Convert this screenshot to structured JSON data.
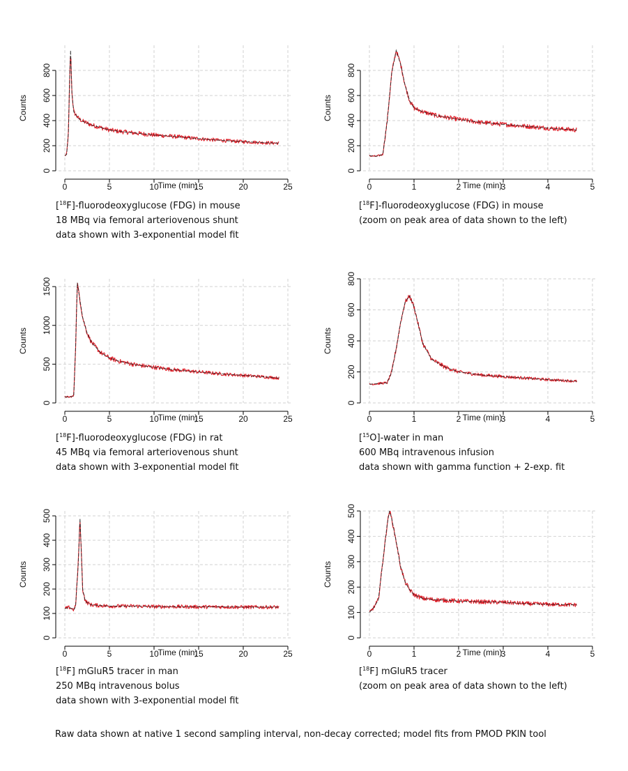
{
  "charts": [
    {
      "chart_data": {
        "type": "line",
        "xlabel": "Time (min)",
        "ylabel": "Counts",
        "xlim": [
          0,
          25
        ],
        "ylim": [
          0,
          1000
        ],
        "xticks": [
          0,
          5,
          10,
          15,
          20,
          25
        ],
        "yticks": [
          0,
          200,
          400,
          600,
          800
        ],
        "grid": true,
        "series": [
          {
            "role": "raw data",
            "color": "#e0202a",
            "x": [
              0,
              0.2,
              0.4,
              0.55,
              0.65,
              0.8,
              1.0,
              1.5,
              2,
              3,
              4,
              5,
              6,
              8,
              10,
              12,
              14,
              16,
              18,
              20,
              22,
              24
            ],
            "y": [
              120,
              130,
              300,
              750,
              960,
              620,
              470,
              420,
              395,
              365,
              345,
              325,
              315,
              300,
              285,
              275,
              262,
              250,
              240,
              232,
              225,
              220
            ]
          },
          {
            "role": "model fit",
            "color": "#222222",
            "x": [
              0,
              0.2,
              0.4,
              0.55,
              0.65,
              0.8,
              1.0,
              1.5,
              2,
              3,
              4,
              5,
              6,
              8,
              10,
              12,
              14,
              16,
              18,
              20,
              22,
              24
            ],
            "y": [
              120,
              130,
              300,
              750,
              960,
              620,
              470,
              420,
              395,
              365,
              345,
              325,
              315,
              300,
              285,
              275,
              262,
              250,
              240,
              232,
              225,
              220
            ]
          }
        ]
      },
      "caption": [
        "F]-fluorodeoxyglucose (FDG) in mouse",
        "18 MBq via femoral arteriovenous shunt",
        "data shown with 3-exponential model fit"
      ]
    },
    {
      "chart_data": {
        "type": "line",
        "xlabel": "Time (min)",
        "ylabel": "Counts",
        "xlim": [
          0,
          5
        ],
        "ylim": [
          0,
          1000
        ],
        "xticks": [
          0,
          1,
          2,
          3,
          4,
          5
        ],
        "yticks": [
          0,
          200,
          400,
          600,
          800
        ],
        "grid": true,
        "series": [
          {
            "role": "raw data",
            "color": "#e0202a",
            "x": [
              0,
              0.15,
              0.3,
              0.4,
              0.5,
              0.6,
              0.7,
              0.8,
              0.9,
              1.0,
              1.2,
              1.5,
              2.0,
              2.5,
              3.0,
              3.5,
              4.0,
              4.65
            ],
            "y": [
              120,
              115,
              130,
              400,
              780,
              960,
              850,
              680,
              560,
              500,
              470,
              440,
              410,
              385,
              370,
              355,
              340,
              325
            ]
          },
          {
            "role": "model fit",
            "color": "#222222",
            "x": [
              0,
              0.15,
              0.3,
              0.4,
              0.5,
              0.6,
              0.7,
              0.8,
              0.9,
              1.0,
              1.2,
              1.5,
              2.0,
              2.5,
              3.0,
              3.5,
              4.0,
              4.65
            ],
            "y": [
              120,
              115,
              130,
              400,
              780,
              960,
              850,
              680,
              560,
              500,
              470,
              440,
              410,
              385,
              370,
              355,
              340,
              325
            ]
          }
        ]
      },
      "caption": [
        "F]-fluorodeoxyglucose (FDG) in mouse",
        "(zoom on peak area of data shown to the left)"
      ]
    },
    {
      "chart_data": {
        "type": "line",
        "xlabel": "Time (min)",
        "ylabel": "Counts",
        "xlim": [
          0,
          25
        ],
        "ylim": [
          0,
          1600
        ],
        "xticks": [
          0,
          5,
          10,
          15,
          20,
          25
        ],
        "yticks": [
          0,
          500,
          1000,
          1500
        ],
        "grid": true,
        "series": [
          {
            "role": "raw data",
            "color": "#e0202a",
            "x": [
              0,
              0.5,
              1.0,
              1.2,
              1.4,
              1.6,
              2,
              2.5,
              3,
              4,
              5,
              6,
              8,
              10,
              12,
              14,
              16,
              18,
              20,
              22,
              24
            ],
            "y": [
              80,
              75,
              90,
              700,
              1550,
              1400,
              1100,
              900,
              780,
              650,
              580,
              540,
              490,
              460,
              430,
              410,
              390,
              370,
              355,
              340,
              320
            ]
          },
          {
            "role": "model fit",
            "color": "#222222",
            "x": [
              0,
              0.5,
              1.0,
              1.2,
              1.4,
              1.6,
              2,
              2.5,
              3,
              4,
              5,
              6,
              8,
              10,
              12,
              14,
              16,
              18,
              20,
              22,
              24
            ],
            "y": [
              80,
              75,
              90,
              700,
              1550,
              1400,
              1100,
              900,
              780,
              650,
              580,
              540,
              490,
              460,
              430,
              410,
              390,
              370,
              355,
              340,
              320
            ]
          }
        ]
      },
      "caption": [
        "F]-fluorodeoxyglucose (FDG) in rat",
        "45 MBq via femoral arteriovenous shunt",
        "data shown with 3-exponential model fit"
      ]
    },
    {
      "chart_data": {
        "type": "line",
        "xlabel": "Time (min)",
        "ylabel": "Counts",
        "xlim": [
          0,
          5
        ],
        "ylim": [
          0,
          800
        ],
        "xticks": [
          0,
          1,
          2,
          3,
          4,
          5
        ],
        "yticks": [
          0,
          200,
          400,
          600,
          800
        ],
        "grid": true,
        "series": [
          {
            "role": "raw data",
            "color": "#e0202a",
            "x": [
              0,
              0.2,
              0.4,
              0.5,
              0.6,
              0.7,
              0.8,
              0.9,
              1.0,
              1.1,
              1.2,
              1.4,
              1.7,
              2.0,
              2.5,
              3.0,
              3.5,
              4.0,
              4.65
            ],
            "y": [
              120,
              125,
              130,
              200,
              350,
              520,
              650,
              690,
              620,
              500,
              380,
              280,
              230,
              200,
              180,
              170,
              160,
              150,
              140
            ]
          },
          {
            "role": "model fit",
            "color": "#222222",
            "x": [
              0,
              0.2,
              0.4,
              0.5,
              0.6,
              0.7,
              0.8,
              0.9,
              1.0,
              1.1,
              1.2,
              1.4,
              1.7,
              2.0,
              2.5,
              3.0,
              3.5,
              4.0,
              4.65
            ],
            "y": [
              120,
              125,
              130,
              200,
              350,
              520,
              650,
              690,
              620,
              500,
              380,
              280,
              230,
              200,
              180,
              170,
              160,
              150,
              140
            ]
          }
        ]
      },
      "caption": [
        "O]-water in man",
        "600 MBq intravenous infusion",
        "data shown with gamma function + 2-exp. fit"
      ]
    },
    {
      "chart_data": {
        "type": "line",
        "xlabel": "Time (min)",
        "ylabel": "Counts",
        "xlim": [
          0,
          25
        ],
        "ylim": [
          0,
          520
        ],
        "xticks": [
          0,
          5,
          10,
          15,
          20,
          25
        ],
        "yticks": [
          0,
          100,
          200,
          300,
          400,
          500
        ],
        "grid": true,
        "series": [
          {
            "role": "raw data",
            "color": "#e0202a",
            "x": [
              0,
              0.5,
              1.0,
              1.2,
              1.5,
              1.7,
              1.85,
              2.0,
              2.3,
              2.7,
              3,
              5,
              8,
              10,
              12,
              15,
              18,
              20,
              22,
              24
            ],
            "y": [
              120,
              125,
              115,
              130,
              300,
              490,
              350,
              200,
              150,
              140,
              135,
              130,
              130,
              128,
              128,
              127,
              127,
              126,
              126,
              126
            ]
          },
          {
            "role": "model fit",
            "color": "#222222",
            "x": [
              0,
              0.5,
              1.0,
              1.2,
              1.5,
              1.7,
              1.85,
              2.0,
              2.3,
              2.7,
              3,
              5,
              8,
              10,
              12,
              15,
              18,
              20,
              22,
              24
            ],
            "y": [
              120,
              125,
              115,
              130,
              300,
              490,
              350,
              200,
              150,
              140,
              135,
              130,
              130,
              128,
              128,
              127,
              127,
              126,
              126,
              126
            ]
          }
        ]
      },
      "caption": [
        "F] mGluR5 tracer in man",
        "250 MBq intravenous bolus",
        "data shown with 3-exponential model fit"
      ]
    },
    {
      "chart_data": {
        "type": "line",
        "xlabel": "Time (min)",
        "ylabel": "Counts",
        "xlim": [
          0,
          5
        ],
        "ylim": [
          0,
          500
        ],
        "xticks": [
          0,
          1,
          2,
          3,
          4,
          5
        ],
        "yticks": [
          0,
          100,
          200,
          300,
          400,
          500
        ],
        "grid": true,
        "series": [
          {
            "role": "raw data",
            "color": "#e0202a",
            "x": [
              0,
              0.1,
              0.2,
              0.3,
              0.4,
              0.45,
              0.5,
              0.6,
              0.7,
              0.8,
              0.9,
              1.0,
              1.2,
              1.5,
              2.0,
              2.5,
              3.0,
              3.5,
              4.0,
              4.65
            ],
            "y": [
              100,
              120,
              150,
              300,
              450,
              500,
              470,
              380,
              280,
              220,
              190,
              170,
              155,
              150,
              145,
              142,
              140,
              135,
              132,
              130
            ]
          },
          {
            "role": "model fit",
            "color": "#222222",
            "x": [
              0,
              0.1,
              0.2,
              0.3,
              0.4,
              0.45,
              0.5,
              0.6,
              0.7,
              0.8,
              0.9,
              1.0,
              1.2,
              1.5,
              2.0,
              2.5,
              3.0,
              3.5,
              4.0,
              4.65
            ],
            "y": [
              100,
              120,
              150,
              300,
              450,
              500,
              470,
              380,
              280,
              220,
              190,
              170,
              155,
              150,
              145,
              142,
              140,
              135,
              132,
              130
            ]
          }
        ]
      },
      "caption": [
        "F] mGluR5 tracer",
        "(zoom on peak area of data shown to the left)"
      ]
    }
  ],
  "superscripts": [
    "18",
    "18",
    "18",
    "15",
    "18",
    "18"
  ],
  "footnote": "Raw data shown at native 1 second sampling interval, non-decay corrected; model fits from PMOD PKIN tool"
}
